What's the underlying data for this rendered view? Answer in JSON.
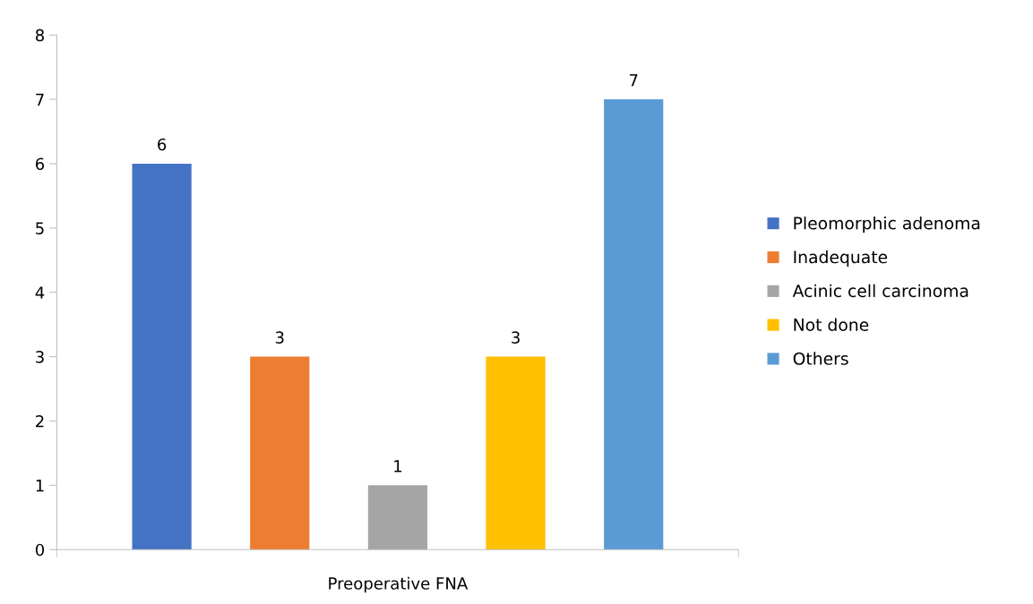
{
  "chart_data": {
    "type": "bar",
    "categories": [
      "Preoperative FNA"
    ],
    "series": [
      {
        "name": "Pleomorphic adenoma",
        "color": "#4472c4",
        "values": [
          6
        ]
      },
      {
        "name": "Inadequate",
        "color": "#ed7d31",
        "values": [
          3
        ]
      },
      {
        "name": "Acinic cell carcinoma",
        "color": "#a5a5a5",
        "values": [
          1
        ]
      },
      {
        "name": "Not done",
        "color": "#ffc000",
        "values": [
          3
        ]
      },
      {
        "name": "Others",
        "color": "#5b9bd5",
        "values": [
          7
        ]
      }
    ],
    "ylim": [
      0,
      8
    ],
    "yticks": [
      0,
      1,
      2,
      3,
      4,
      5,
      6,
      7,
      8
    ],
    "grid": false,
    "legend": "right",
    "data_labels": true
  }
}
